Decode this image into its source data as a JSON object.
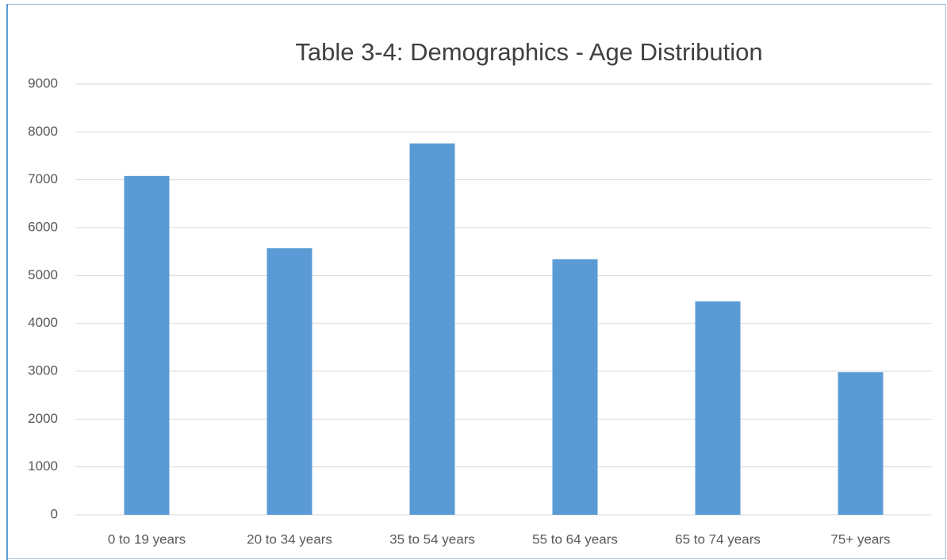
{
  "chart_data": {
    "type": "bar",
    "title": "Table 3-4: Demographics - Age Distribution",
    "categories": [
      "0 to 19 years",
      "20 to 34 years",
      "35 to 54 years",
      "55 to 64 years",
      "65 to 74 years",
      "75+ years"
    ],
    "values": [
      7080,
      5570,
      7760,
      5340,
      4460,
      2980
    ],
    "color": "#5b9bd5",
    "ylim": [
      0,
      9000
    ],
    "yticks": [
      0,
      1000,
      2000,
      3000,
      4000,
      5000,
      6000,
      7000,
      8000,
      9000
    ],
    "grid": true
  }
}
